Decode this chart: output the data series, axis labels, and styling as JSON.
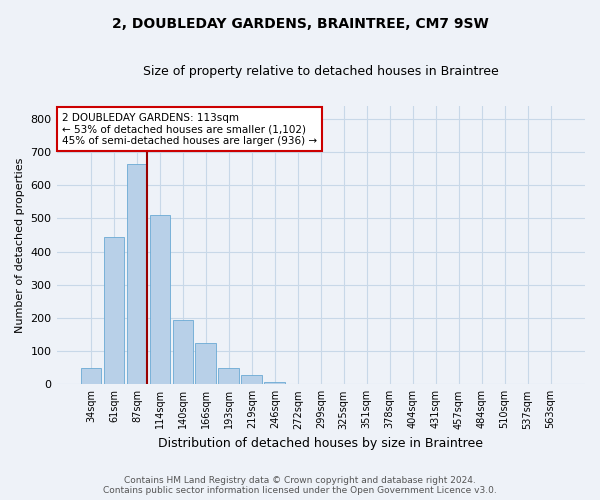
{
  "title": "2, DOUBLEDAY GARDENS, BRAINTREE, CM7 9SW",
  "subtitle": "Size of property relative to detached houses in Braintree",
  "xlabel": "Distribution of detached houses by size in Braintree",
  "ylabel": "Number of detached properties",
  "bar_labels": [
    "34sqm",
    "61sqm",
    "87sqm",
    "114sqm",
    "140sqm",
    "166sqm",
    "193sqm",
    "219sqm",
    "246sqm",
    "272sqm",
    "299sqm",
    "325sqm",
    "351sqm",
    "378sqm",
    "404sqm",
    "431sqm",
    "457sqm",
    "484sqm",
    "510sqm",
    "537sqm",
    "563sqm"
  ],
  "bar_values": [
    50,
    445,
    665,
    510,
    195,
    125,
    50,
    27,
    8,
    2,
    1,
    0,
    0,
    0,
    0,
    0,
    0,
    0,
    0,
    0,
    0
  ],
  "bar_color": "#b8d0e8",
  "bar_edge_color": "#6aaad4",
  "vline_color": "#990000",
  "vline_bar_index": 2,
  "annotation_text": "2 DOUBLEDAY GARDENS: 113sqm\n← 53% of detached houses are smaller (1,102)\n45% of semi-detached houses are larger (936) →",
  "annotation_box_color": "#ffffff",
  "annotation_box_edge": "#cc0000",
  "ylim": [
    0,
    840
  ],
  "yticks": [
    0,
    100,
    200,
    300,
    400,
    500,
    600,
    700,
    800
  ],
  "grid_color": "#c8d8e8",
  "background_color": "#eef2f8",
  "footer_line1": "Contains HM Land Registry data © Crown copyright and database right 2024.",
  "footer_line2": "Contains public sector information licensed under the Open Government Licence v3.0."
}
